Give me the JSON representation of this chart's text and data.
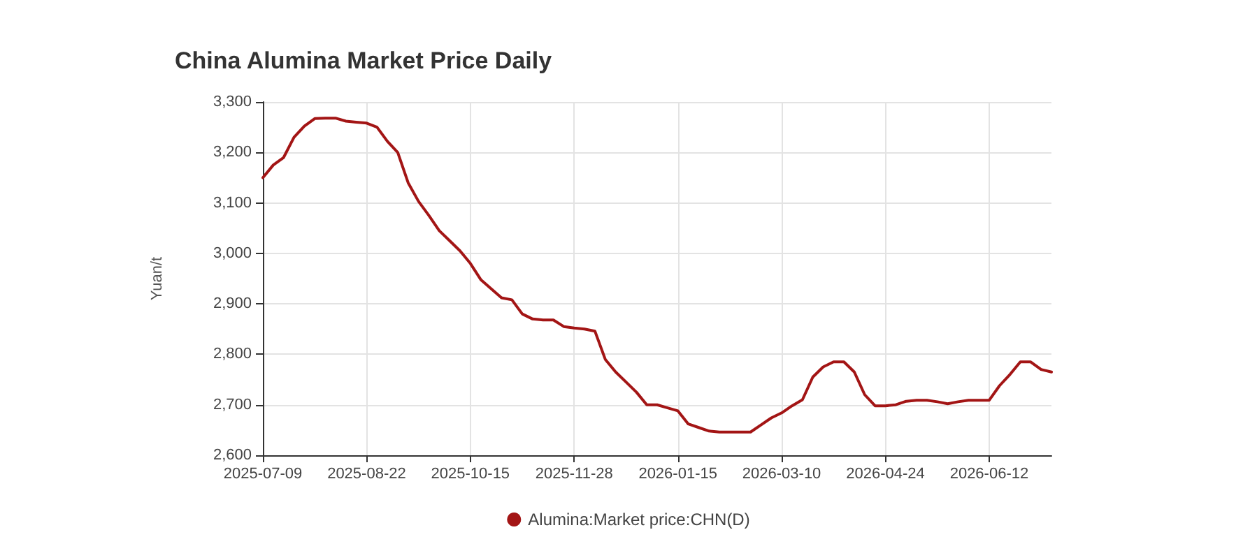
{
  "chart_data": {
    "type": "line",
    "title": "China Alumina Market Price Daily",
    "ylabel": "Yuan/t",
    "categories": [
      "2025-07-09",
      null,
      null,
      null,
      null,
      null,
      null,
      null,
      null,
      null,
      "2025-08-22",
      null,
      null,
      null,
      null,
      null,
      null,
      null,
      null,
      null,
      "2025-10-15",
      null,
      null,
      null,
      null,
      null,
      null,
      null,
      null,
      null,
      "2025-11-28",
      null,
      null,
      null,
      null,
      null,
      null,
      null,
      null,
      null,
      "2026-01-15",
      null,
      null,
      null,
      null,
      null,
      null,
      null,
      null,
      null,
      "2026-03-10",
      null,
      null,
      null,
      null,
      null,
      null,
      null,
      null,
      null,
      "2026-04-24",
      null,
      null,
      null,
      null,
      null,
      null,
      null,
      null,
      null,
      "2026-06-12",
      null,
      null,
      null,
      null,
      null,
      null
    ],
    "series": [
      {
        "name": "Alumina:Market price:CHN(D)",
        "color": "#a31515",
        "values": [
          3150,
          3175,
          3190,
          3230,
          3252,
          3267,
          3268,
          3268,
          3262,
          3260,
          3258,
          3250,
          3222,
          3200,
          3140,
          3103,
          3075,
          3045,
          3025,
          3005,
          2980,
          2948,
          2930,
          2912,
          2908,
          2880,
          2870,
          2868,
          2868,
          2855,
          2852,
          2850,
          2846,
          2790,
          2765,
          2745,
          2725,
          2700,
          2700,
          2694,
          2688,
          2662,
          2655,
          2648,
          2646,
          2646,
          2646,
          2646,
          2660,
          2674,
          2684,
          2698,
          2710,
          2755,
          2775,
          2785,
          2785,
          2765,
          2720,
          2698,
          2698,
          2700,
          2707,
          2709,
          2709,
          2706,
          2702,
          2706,
          2709,
          2709,
          2709,
          2738,
          2760,
          2785,
          2785,
          2770,
          2765
        ]
      }
    ],
    "ylim": [
      2600,
      3300
    ],
    "yticks": [
      {
        "value": 2600,
        "label": "2,600"
      },
      {
        "value": 2700,
        "label": "2,700"
      },
      {
        "value": 2800,
        "label": "2,800"
      },
      {
        "value": 2900,
        "label": "2,900"
      },
      {
        "value": 3000,
        "label": "3,000"
      },
      {
        "value": 3100,
        "label": "3,100"
      },
      {
        "value": 3200,
        "label": "3,200"
      },
      {
        "value": 3300,
        "label": "3,300"
      }
    ],
    "grid": true,
    "legend": "bottom",
    "marker": "none",
    "line_style": "solid"
  }
}
